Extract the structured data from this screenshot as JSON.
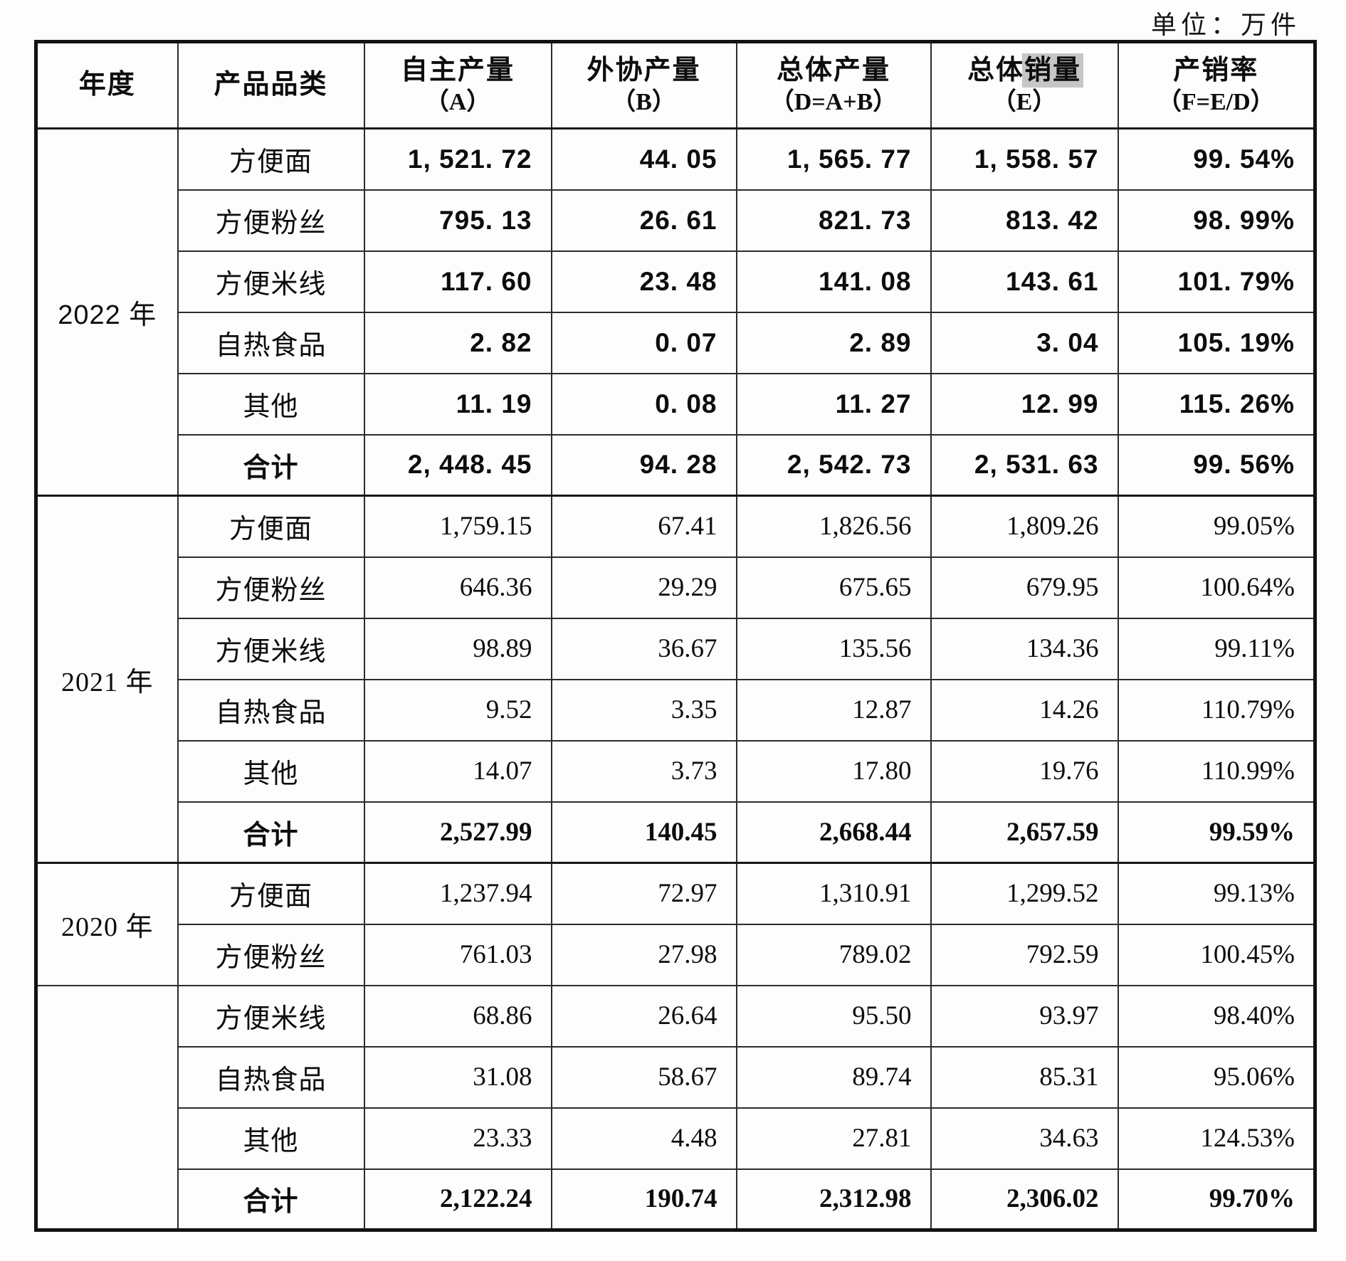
{
  "unit_label": "单位：万件",
  "table": {
    "header": {
      "year": "年度",
      "category": "产品品类",
      "self_output": {
        "line1": "自主产量",
        "line2": "（A）"
      },
      "outsourced_output": {
        "line1": "外协产量",
        "line2": "（B）"
      },
      "total_output": {
        "line1": "总体产量",
        "line2": "（D=A+B）"
      },
      "total_sales": {
        "line1_pre": "总体",
        "line1_highlight": "销量",
        "line2": "（E）"
      },
      "ratio": {
        "line1": "产销率",
        "line2": "（F=E/D）"
      }
    },
    "groups": [
      {
        "year": "2022 年",
        "block_style": "bold",
        "rows": [
          {
            "category": "方便面",
            "values": [
              "1, 521. 72",
              "44. 05",
              "1, 565. 77",
              "1, 558. 57",
              "99. 54%"
            ]
          },
          {
            "category": "方便粉丝",
            "values": [
              "795. 13",
              "26. 61",
              "821. 73",
              "813. 42",
              "98. 99%"
            ]
          },
          {
            "category": "方便米线",
            "values": [
              "117. 60",
              "23. 48",
              "141. 08",
              "143. 61",
              "101. 79%"
            ]
          },
          {
            "category": "自热食品",
            "values": [
              "2. 82",
              "0. 07",
              "2. 89",
              "3. 04",
              "105. 19%"
            ]
          },
          {
            "category": "其他",
            "values": [
              "11. 19",
              "0. 08",
              "11. 27",
              "12. 99",
              "115. 26%"
            ]
          },
          {
            "category": "合计",
            "values": [
              "2, 448. 45",
              "94. 28",
              "2, 542. 73",
              "2, 531. 63",
              "99. 56%"
            ],
            "is_total": true
          }
        ]
      },
      {
        "year": "2021 年",
        "block_style": "serif",
        "rows": [
          {
            "category": "方便面",
            "values": [
              "1,759.15",
              "67.41",
              "1,826.56",
              "1,809.26",
              "99.05%"
            ]
          },
          {
            "category": "方便粉丝",
            "values": [
              "646.36",
              "29.29",
              "675.65",
              "679.95",
              "100.64%"
            ]
          },
          {
            "category": "方便米线",
            "values": [
              "98.89",
              "36.67",
              "135.56",
              "134.36",
              "99.11%"
            ]
          },
          {
            "category": "自热食品",
            "values": [
              "9.52",
              "3.35",
              "12.87",
              "14.26",
              "110.79%"
            ]
          },
          {
            "category": "其他",
            "values": [
              "14.07",
              "3.73",
              "17.80",
              "19.76",
              "110.99%"
            ]
          },
          {
            "category": "合计",
            "values": [
              "2,527.99",
              "140.45",
              "2,668.44",
              "2,657.59",
              "99.59%"
            ],
            "is_total": true
          }
        ]
      },
      {
        "year": "2020 年",
        "block_style": "serif",
        "year_rowspan": 2,
        "rows": [
          {
            "category": "方便面",
            "values": [
              "1,237.94",
              "72.97",
              "1,310.91",
              "1,299.52",
              "99.13%"
            ]
          },
          {
            "category": "方便粉丝",
            "values": [
              "761.03",
              "27.98",
              "789.02",
              "792.59",
              "100.45%"
            ]
          },
          {
            "category": "方便米线",
            "values": [
              "68.86",
              "26.64",
              "95.50",
              "93.97",
              "98.40%"
            ]
          },
          {
            "category": "自热食品",
            "values": [
              "31.08",
              "58.67",
              "89.74",
              "85.31",
              "95.06%"
            ]
          },
          {
            "category": "其他",
            "values": [
              "23.33",
              "4.48",
              "27.81",
              "34.63",
              "124.53%"
            ]
          },
          {
            "category": "合计",
            "values": [
              "2,122.24",
              "190.74",
              "2,312.98",
              "2,306.02",
              "99.70%"
            ],
            "is_total": true
          }
        ]
      }
    ]
  }
}
